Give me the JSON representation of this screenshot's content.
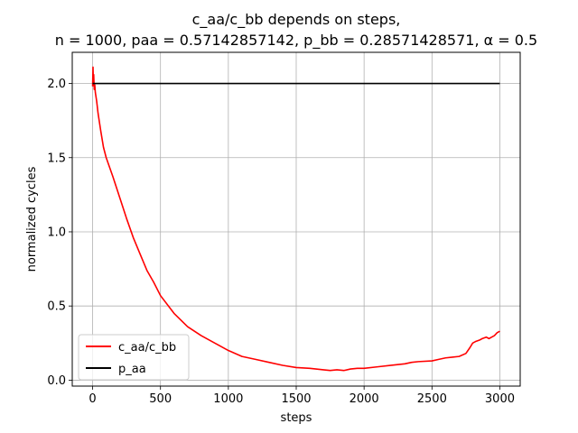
{
  "chart_data": {
    "type": "line",
    "title_line1": "c_aa/c_bb depends on steps,",
    "title_line2": "n = 1000, paa = 0.57142857142, p_bb = 0.28571428571, α = 0.5",
    "xlabel": "steps",
    "ylabel": "normalized cycles",
    "xlim": [
      -150,
      3150
    ],
    "ylim": [
      -0.04,
      2.21
    ],
    "xticks": [
      0,
      500,
      1000,
      1500,
      2000,
      2500,
      3000
    ],
    "xtick_labels": [
      "0",
      "500",
      "1000",
      "1500",
      "2000",
      "2500",
      "3000"
    ],
    "yticks": [
      0.0,
      0.5,
      1.0,
      1.5,
      2.0
    ],
    "ytick_labels": [
      "0.0",
      "0.5",
      "1.0",
      "1.5",
      "2.0"
    ],
    "grid": true,
    "legend_position": "lower-left",
    "series": [
      {
        "name": "c_aa/c_bb",
        "color": "#ff0000",
        "x": [
          0,
          3,
          5,
          8,
          12,
          16,
          20,
          30,
          40,
          60,
          80,
          100,
          150,
          200,
          250,
          300,
          350,
          400,
          450,
          500,
          600,
          700,
          800,
          900,
          1000,
          1100,
          1200,
          1300,
          1400,
          1500,
          1600,
          1700,
          1750,
          1800,
          1850,
          1900,
          1950,
          2000,
          2100,
          2200,
          2300,
          2350,
          2400,
          2500,
          2550,
          2600,
          2650,
          2700,
          2750,
          2780,
          2800,
          2820,
          2850,
          2870,
          2900,
          2920,
          2940,
          2960,
          2980,
          3000
        ],
        "y": [
          1.98,
          2.11,
          2.02,
          2.06,
          1.96,
          1.99,
          1.94,
          1.88,
          1.8,
          1.68,
          1.57,
          1.5,
          1.37,
          1.23,
          1.09,
          0.96,
          0.85,
          0.74,
          0.66,
          0.57,
          0.45,
          0.36,
          0.3,
          0.25,
          0.2,
          0.16,
          0.14,
          0.12,
          0.1,
          0.085,
          0.08,
          0.07,
          0.065,
          0.07,
          0.065,
          0.075,
          0.08,
          0.08,
          0.09,
          0.1,
          0.11,
          0.12,
          0.125,
          0.13,
          0.14,
          0.15,
          0.155,
          0.16,
          0.18,
          0.22,
          0.25,
          0.26,
          0.27,
          0.28,
          0.29,
          0.28,
          0.29,
          0.3,
          0.32,
          0.33
        ]
      },
      {
        "name": "p_aa",
        "color": "#000000",
        "x": [
          0,
          3000
        ],
        "y": [
          2.0,
          2.0
        ]
      }
    ]
  }
}
